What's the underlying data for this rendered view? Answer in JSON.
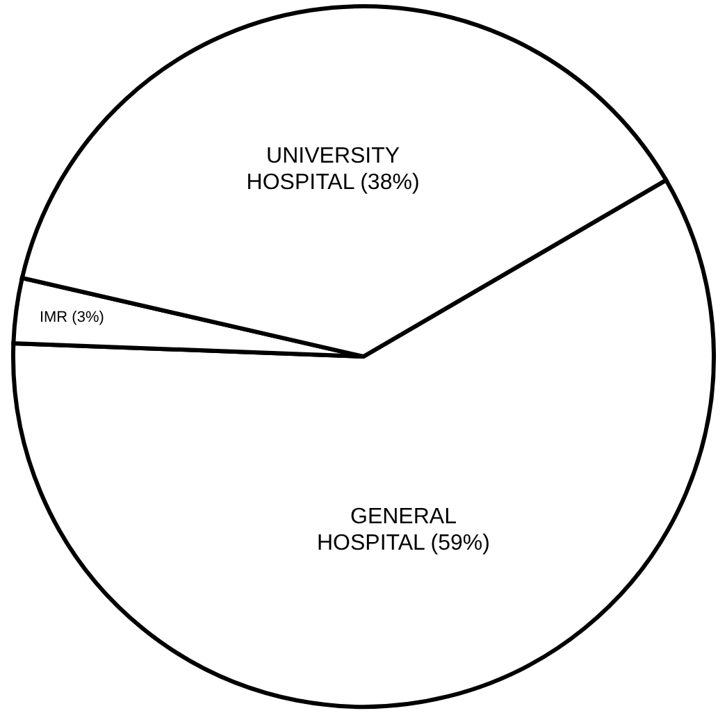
{
  "chart_data": {
    "type": "pie",
    "categories": [
      "GENERAL HOSPITAL",
      "IMR",
      "UNIVERSITY HOSPITAL"
    ],
    "values": [
      59,
      3,
      38
    ],
    "colors": [
      "#ffffff",
      "#ffffff",
      "#ffffff"
    ],
    "value_labels": [
      "(59%)",
      "(3%)",
      "(38%)"
    ]
  }
}
